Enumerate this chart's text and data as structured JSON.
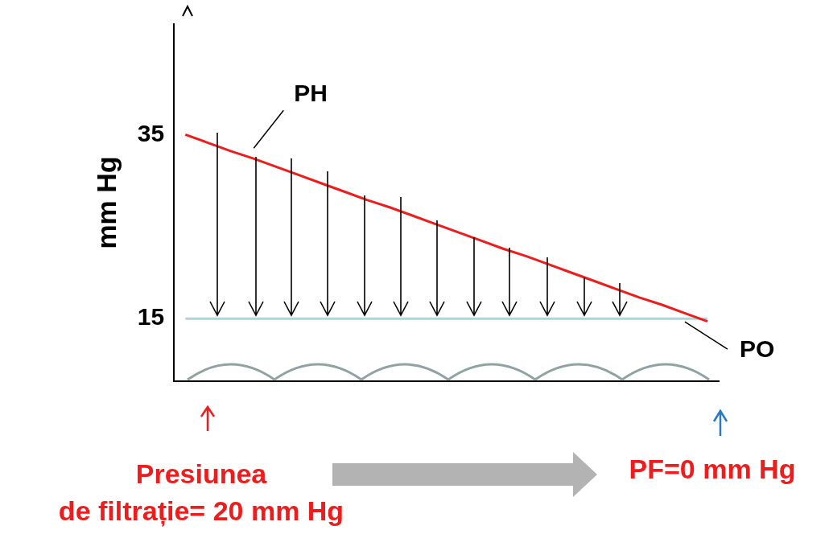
{
  "chart_data": {
    "type": "line",
    "ylabel": "mm Hg",
    "categories": [
      null,
      null,
      null,
      null,
      null,
      null,
      null,
      null,
      null,
      null,
      null,
      null,
      null,
      null,
      null,
      null,
      null,
      null,
      null,
      null,
      null,
      null,
      null,
      null
    ],
    "ylim": [
      8.2,
      47
    ],
    "yticks": [
      15,
      35
    ],
    "tick_labels": "y",
    "grid": false,
    "legend": false,
    "marker": "none",
    "line_style": "solid",
    "series": [
      {
        "name": "PH",
        "color": "#ee1c1c",
        "values": [
          35,
          34.1,
          33.2,
          32.4,
          31.5,
          30.6,
          29.7,
          28.8,
          27.9,
          27.1,
          26.2,
          25.3,
          24.4,
          23.5,
          22.6,
          21.8,
          20.9,
          20,
          19.1,
          18.2,
          17.3,
          16.5,
          15.6,
          14.7
        ]
      },
      {
        "name": "PO",
        "color": "#a8d8d8",
        "values": [
          15,
          15,
          15,
          15,
          15,
          15,
          15,
          15,
          15,
          15,
          15,
          15,
          15,
          15,
          15,
          15,
          15,
          15,
          15,
          15,
          15,
          15,
          15,
          15
        ]
      }
    ],
    "annotations": [
      "Presiunea\nde filtrație= 20 mm Hg",
      "PF=0 mm Hg"
    ]
  }
}
